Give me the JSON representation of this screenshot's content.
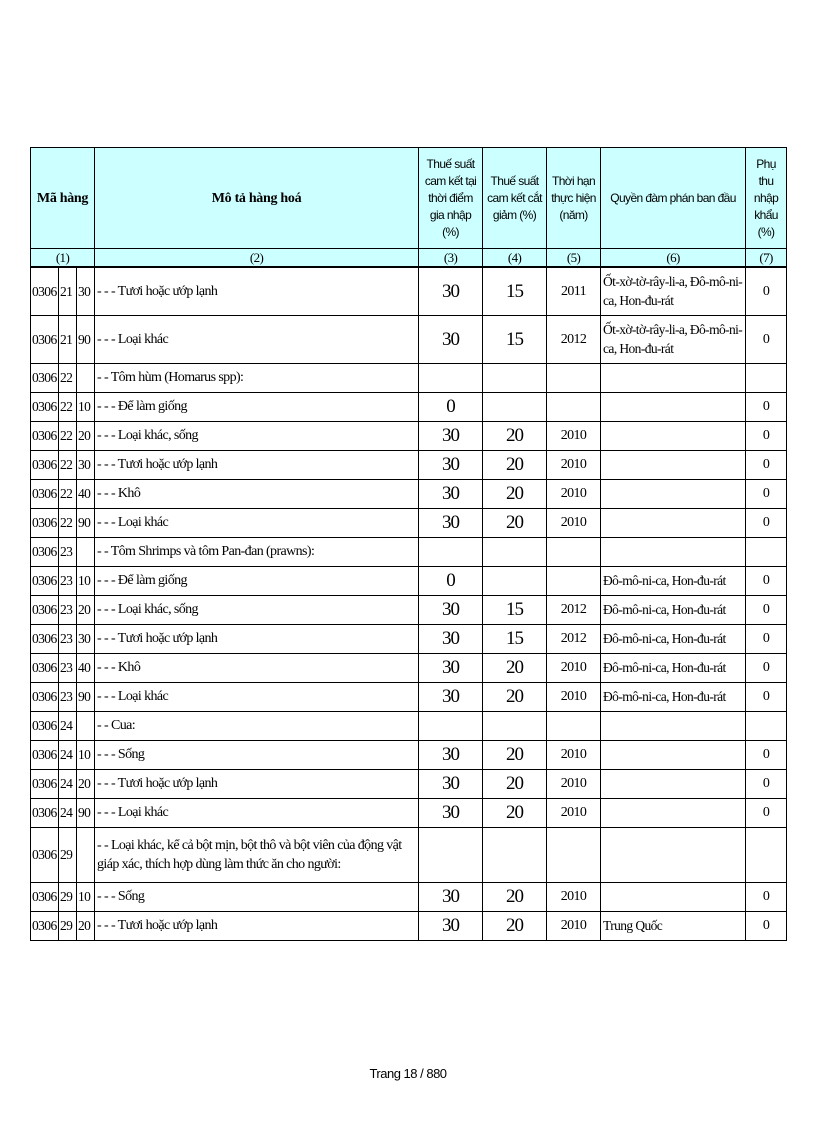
{
  "header": {
    "code": "Mã hàng",
    "description": "Mô tả hàng hoá",
    "col3": "Thuế suất cam kết tại thời điểm gia nhập (%)",
    "col4": "Thuế suất cam kết cắt giảm (%)",
    "col5": "Thời hạn thực hiện (năm)",
    "col6": "Quyền đàm phán ban đầu",
    "col7": "Phụ thu nhập khẩu (%)",
    "nums": [
      "(1)",
      "(2)",
      "(3)",
      "(4)",
      "(5)",
      "(6)",
      "(7)"
    ]
  },
  "rows": [
    {
      "c1": "0306",
      "c2": "21",
      "c3": "30",
      "desc": "- - - Tươi hoặc ướp lạnh",
      "base": "30",
      "cut": "15",
      "year": "2011",
      "inr": "Ốt-xờ-tờ-rây-li-a, Đô-mô-ni-ca, Hon-đu-rát",
      "sur": "0"
    },
    {
      "c1": "0306",
      "c2": "21",
      "c3": "90",
      "desc": "- - - Loại khác",
      "base": "30",
      "cut": "15",
      "year": "2012",
      "inr": "Ốt-xờ-tờ-rây-li-a, Đô-mô-ni-ca, Hon-đu-rát",
      "sur": "0"
    },
    {
      "c1": "0306",
      "c2": "22",
      "c3": "",
      "desc": "- - Tôm hùm (Homarus spp):",
      "base": "",
      "cut": "",
      "year": "",
      "inr": "",
      "sur": ""
    },
    {
      "c1": "0306",
      "c2": "22",
      "c3": "10",
      "desc": "- - - Để làm giống",
      "base": "0",
      "cut": "",
      "year": "",
      "inr": "",
      "sur": "0"
    },
    {
      "c1": "0306",
      "c2": "22",
      "c3": "20",
      "desc": "- - - Loại khác, sống",
      "base": "30",
      "cut": "20",
      "year": "2010",
      "inr": "",
      "sur": "0"
    },
    {
      "c1": "0306",
      "c2": "22",
      "c3": "30",
      "desc": "- - - Tươi hoặc ướp lạnh",
      "base": "30",
      "cut": "20",
      "year": "2010",
      "inr": "",
      "sur": "0"
    },
    {
      "c1": "0306",
      "c2": "22",
      "c3": "40",
      "desc": "- - - Khô",
      "base": "30",
      "cut": "20",
      "year": "2010",
      "inr": "",
      "sur": "0"
    },
    {
      "c1": "0306",
      "c2": "22",
      "c3": "90",
      "desc": "- - - Loại khác",
      "base": "30",
      "cut": "20",
      "year": "2010",
      "inr": "",
      "sur": "0"
    },
    {
      "c1": "0306",
      "c2": "23",
      "c3": "",
      "desc": "- - Tôm Shrimps và tôm Pan-đan (prawns):",
      "base": "",
      "cut": "",
      "year": "",
      "inr": "",
      "sur": ""
    },
    {
      "c1": "0306",
      "c2": "23",
      "c3": "10",
      "desc": "- - - Để làm giống",
      "base": "0",
      "cut": "",
      "year": "",
      "inr": "Đô-mô-ni-ca, Hon-đu-rát",
      "sur": "0"
    },
    {
      "c1": "0306",
      "c2": "23",
      "c3": "20",
      "desc": "- - - Loại khác, sống",
      "base": "30",
      "cut": "15",
      "year": "2012",
      "inr": "Đô-mô-ni-ca, Hon-đu-rát",
      "sur": "0"
    },
    {
      "c1": "0306",
      "c2": "23",
      "c3": "30",
      "desc": "- - - Tươi hoặc ướp lạnh",
      "base": "30",
      "cut": "15",
      "year": "2012",
      "inr": "Đô-mô-ni-ca, Hon-đu-rát",
      "sur": "0"
    },
    {
      "c1": "0306",
      "c2": "23",
      "c3": "40",
      "desc": "- - - Khô",
      "base": "30",
      "cut": "20",
      "year": "2010",
      "inr": "Đô-mô-ni-ca, Hon-đu-rát",
      "sur": "0"
    },
    {
      "c1": "0306",
      "c2": "23",
      "c3": "90",
      "desc": " - - - Loại khác",
      "base": "30",
      "cut": "20",
      "year": "2010",
      "inr": "Đô-mô-ni-ca, Hon-đu-rát",
      "sur": "0"
    },
    {
      "c1": "0306",
      "c2": "24",
      "c3": "",
      "desc": "- - Cua:",
      "base": "",
      "cut": "",
      "year": "",
      "inr": "",
      "sur": ""
    },
    {
      "c1": "0306",
      "c2": "24",
      "c3": "10",
      "desc": "- - - Sống",
      "base": "30",
      "cut": "20",
      "year": "2010",
      "inr": "",
      "sur": "0"
    },
    {
      "c1": "0306",
      "c2": "24",
      "c3": "20",
      "desc": "- - - Tươi hoặc ướp lạnh",
      "base": "30",
      "cut": "20",
      "year": "2010",
      "inr": "",
      "sur": "0"
    },
    {
      "c1": "0306",
      "c2": "24",
      "c3": "90",
      "desc": "- - - Loại khác",
      "base": "30",
      "cut": "20",
      "year": "2010",
      "inr": "",
      "sur": "0"
    },
    {
      "c1": "0306",
      "c2": "29",
      "c3": "",
      "desc": "- - Loại khác, kể cả bột mịn, bột thô và bột viên của động vật giáp xác, thích hợp dùng làm thức ăn cho người:",
      "base": "",
      "cut": "",
      "year": "",
      "inr": "",
      "sur": ""
    },
    {
      "c1": "0306",
      "c2": "29",
      "c3": "10",
      "desc": "- - - Sống",
      "base": "30",
      "cut": "20",
      "year": "2010",
      "inr": "",
      "sur": "0"
    },
    {
      "c1": "0306",
      "c2": "29",
      "c3": "20",
      "desc": "- - - Tươi hoặc ướp lạnh",
      "base": "30",
      "cut": "20",
      "year": "2010",
      "inr": "Trung Quốc",
      "sur": "0"
    }
  ],
  "footer": {
    "page": "Trang 18 / 880"
  }
}
